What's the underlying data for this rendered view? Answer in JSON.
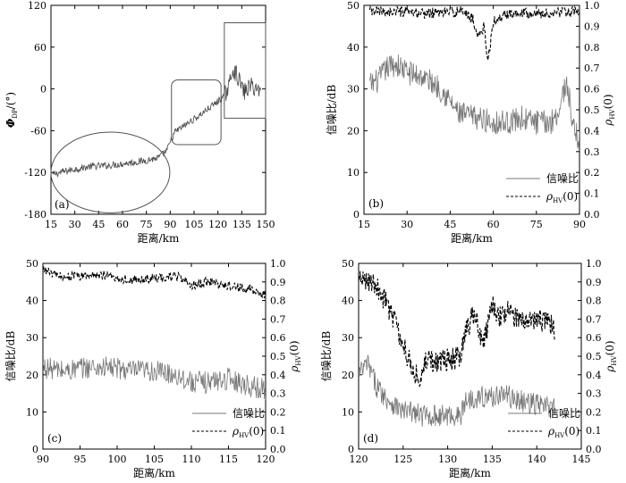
{
  "chart_data": [
    {
      "id": "a",
      "panel_label": "(a)",
      "type": "line",
      "xlabel": "距离/km",
      "ylabel": "Φ",
      "ylabel_sub": "DP",
      "ylabel_unit": "/(°)",
      "xlim": [
        15,
        145
      ],
      "ylim": [
        -180,
        120
      ],
      "xticks": [
        "15",
        "30",
        "45",
        "60",
        "75",
        "90",
        "105",
        "120",
        "135",
        "150"
      ],
      "yticks": [
        "120",
        "60",
        "0",
        "-60",
        "-120",
        "-180"
      ],
      "series": [
        {
          "name": "Φ_DP",
          "color": "#444444",
          "x": [
            16,
            22,
            30,
            40,
            50,
            60,
            70,
            80,
            85,
            88,
            90,
            95,
            100,
            105,
            110,
            115,
            120,
            123,
            125,
            128,
            132,
            136,
            140,
            142
          ],
          "y": [
            -123,
            -119,
            -115,
            -111,
            -110,
            -107,
            -104,
            -99,
            -89,
            -73,
            -62,
            -54,
            -46,
            -38,
            -29,
            -20,
            -10,
            5,
            30,
            18,
            -5,
            5,
            0,
            -5
          ]
        }
      ],
      "annotations": [
        {
          "shape": "ellipse",
          "label": "region-1",
          "x_range": [
            15,
            87
          ],
          "y_range": [
            -178,
            -62
          ]
        },
        {
          "shape": "rounded-rect",
          "label": "region-2",
          "x_range": [
            88,
            118
          ],
          "y_range": [
            -80,
            13
          ]
        },
        {
          "shape": "rect",
          "label": "region-3",
          "x_range": [
            120,
            145
          ],
          "y_range": [
            -42,
            95
          ]
        }
      ]
    },
    {
      "id": "b",
      "panel_label": "(b)",
      "type": "line",
      "xlabel": "距离/km",
      "ylabel": "信噪比/dB",
      "y2label": "ρ",
      "y2label_sub": "HV",
      "y2label_suffix": "(0)",
      "xlim": [
        15,
        90
      ],
      "ylim": [
        0,
        50
      ],
      "y2lim": [
        0.0,
        1.0
      ],
      "xticks": [
        "15",
        "30",
        "45",
        "60",
        "75",
        "90"
      ],
      "yticks": [
        "50",
        "40",
        "30",
        "20",
        "10",
        "0"
      ],
      "y2ticks": [
        "1.0",
        "0.9",
        "0.8",
        "0.7",
        "0.6",
        "0.5",
        "0.4",
        "0.3",
        "0.2",
        "0.1",
        "0.0"
      ],
      "series": [
        {
          "name": "信噪比",
          "axis": "left",
          "style": "solid",
          "color": "#777777",
          "x": [
            17,
            20,
            23,
            26,
            30,
            35,
            40,
            43,
            45,
            48,
            55,
            60,
            65,
            70,
            75,
            80,
            83,
            85,
            86,
            88,
            90
          ],
          "y": [
            31,
            32,
            35,
            36,
            34,
            33,
            31,
            29,
            27,
            24,
            23,
            22,
            22,
            23,
            22,
            22,
            25,
            31,
            30,
            20,
            18
          ]
        },
        {
          "name": "ρHV(0)",
          "axis": "right",
          "style": "dashed",
          "color": "#000000",
          "x": [
            17,
            25,
            35,
            45,
            50,
            53,
            55,
            57,
            58,
            60,
            65,
            70,
            75,
            80,
            85,
            88,
            90
          ],
          "y": [
            0.97,
            0.97,
            0.96,
            0.97,
            0.97,
            0.93,
            0.85,
            0.9,
            0.72,
            0.92,
            0.96,
            0.97,
            0.96,
            0.96,
            0.97,
            0.97,
            0.96
          ]
        }
      ],
      "legend": {
        "position": "bottom-right",
        "entries": [
          "信噪比",
          "ρHV(0)"
        ],
        "entry_subs": [
          "",
          "HV"
        ],
        "entry_suffixes": [
          "",
          "(0)"
        ],
        "entry_bases": [
          "信噪比",
          "ρ"
        ]
      }
    },
    {
      "id": "c",
      "panel_label": "(c)",
      "type": "line",
      "xlabel": "距离/km",
      "ylabel": "信噪比/dB",
      "y2label": "ρ",
      "y2label_sub": "HV",
      "y2label_suffix": "(0)",
      "xlim": [
        90,
        120
      ],
      "ylim": [
        0,
        50
      ],
      "y2lim": [
        0.0,
        1.0
      ],
      "xticks": [
        "90",
        "95",
        "100",
        "105",
        "110",
        "115",
        "120"
      ],
      "yticks": [
        "50",
        "40",
        "30",
        "20",
        "10",
        "0"
      ],
      "y2ticks": [
        "1.0",
        "0.9",
        "0.8",
        "0.7",
        "0.6",
        "0.5",
        "0.4",
        "0.3",
        "0.2",
        "0.1",
        "0.0"
      ],
      "series": [
        {
          "name": "信噪比",
          "axis": "left",
          "style": "solid",
          "color": "#777777",
          "x": [
            90,
            93,
            96,
            99,
            102,
            105,
            108,
            110,
            112,
            115,
            118,
            120
          ],
          "y": [
            22,
            21,
            22,
            22,
            21,
            21,
            20,
            18,
            18,
            19,
            17,
            16
          ]
        },
        {
          "name": "ρHV(0)",
          "axis": "right",
          "style": "dashed",
          "color": "#000000",
          "x": [
            90,
            92,
            95,
            98,
            100,
            103,
            105,
            108,
            110,
            112,
            115,
            118,
            120
          ],
          "y": [
            0.97,
            0.93,
            0.93,
            0.94,
            0.92,
            0.91,
            0.92,
            0.93,
            0.88,
            0.9,
            0.88,
            0.86,
            0.83
          ]
        }
      ],
      "legend": {
        "position": "bottom-right",
        "entries": [
          "信噪比",
          "ρHV(0)"
        ],
        "entry_subs": [
          "",
          "HV"
        ],
        "entry_suffixes": [
          "",
          "(0)"
        ],
        "entry_bases": [
          "信噪比",
          "ρ"
        ]
      }
    },
    {
      "id": "d",
      "panel_label": "(d)",
      "type": "line",
      "xlabel": "距离/km",
      "ylabel": "信噪比/dB",
      "y2label": "ρ",
      "y2label_sub": "HV",
      "y2label_suffix": "(0)",
      "xlim": [
        120,
        145
      ],
      "ylim": [
        0,
        50
      ],
      "y2lim": [
        0.0,
        1.0
      ],
      "xticks": [
        "120",
        "125",
        "130",
        "135",
        "140",
        "145"
      ],
      "yticks": [
        "50",
        "40",
        "30",
        "20",
        "10",
        "0"
      ],
      "y2ticks": [
        "1.0",
        "0.9",
        "0.8",
        "0.7",
        "0.6",
        "0.5",
        "0.4",
        "0.3",
        "0.2",
        "0.1",
        "0.0"
      ],
      "series": [
        {
          "name": "信噪比",
          "axis": "left",
          "style": "solid",
          "color": "#777777",
          "x": [
            120,
            121,
            122,
            123,
            124,
            125,
            126,
            127,
            128,
            130,
            131.5,
            132,
            133,
            135,
            136,
            138,
            140,
            142
          ],
          "y": [
            20,
            23,
            17,
            14,
            12,
            10,
            10,
            9,
            9,
            9,
            9,
            13,
            14,
            14,
            15,
            13,
            12,
            11
          ]
        },
        {
          "name": "ρHV(0)",
          "axis": "right",
          "style": "dashed",
          "color": "#000000",
          "x": [
            120,
            121,
            122,
            123,
            124,
            125,
            126,
            127,
            127.5,
            128,
            131.5,
            132,
            133,
            134,
            135,
            136,
            137,
            138,
            139,
            140,
            141,
            142
          ],
          "y": [
            0.9,
            0.92,
            0.88,
            0.8,
            0.7,
            0.55,
            0.45,
            0.35,
            0.5,
            0.47,
            0.49,
            0.65,
            0.72,
            0.55,
            0.78,
            0.7,
            0.75,
            0.68,
            0.72,
            0.7,
            0.68,
            0.65
          ]
        }
      ],
      "legend": {
        "position": "bottom-right",
        "entries": [
          "信噪比",
          "ρHV(0)"
        ],
        "entry_subs": [
          "",
          "HV"
        ],
        "entry_suffixes": [
          "",
          "(0)"
        ],
        "entry_bases": [
          "信噪比",
          "ρ"
        ]
      }
    }
  ]
}
